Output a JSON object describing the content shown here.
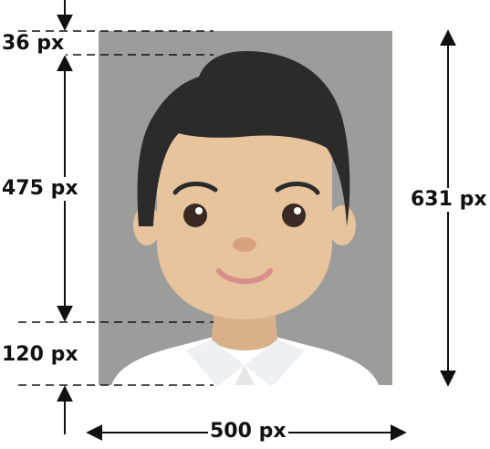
{
  "dimensions": {
    "top_margin": "36 px",
    "face_height": "475 px",
    "bottom_margin": "120 px",
    "total_height": "631 px",
    "total_width": "500 px"
  },
  "colors": {
    "photo_background": "#9c9d9b",
    "hair": "#2b2b2b",
    "skin": "#e8c49c",
    "skin_shadow": "#d9b088",
    "shirt": "#ffffff",
    "collar_shade": "#e6e6e6",
    "mouth": "#d88e8a",
    "nose": "#d9a27e",
    "eye": "#3b2a22",
    "line": "#111111"
  },
  "icons": {
    "portrait": "person-portrait-icon",
    "arrows": "double-arrow-icon"
  }
}
